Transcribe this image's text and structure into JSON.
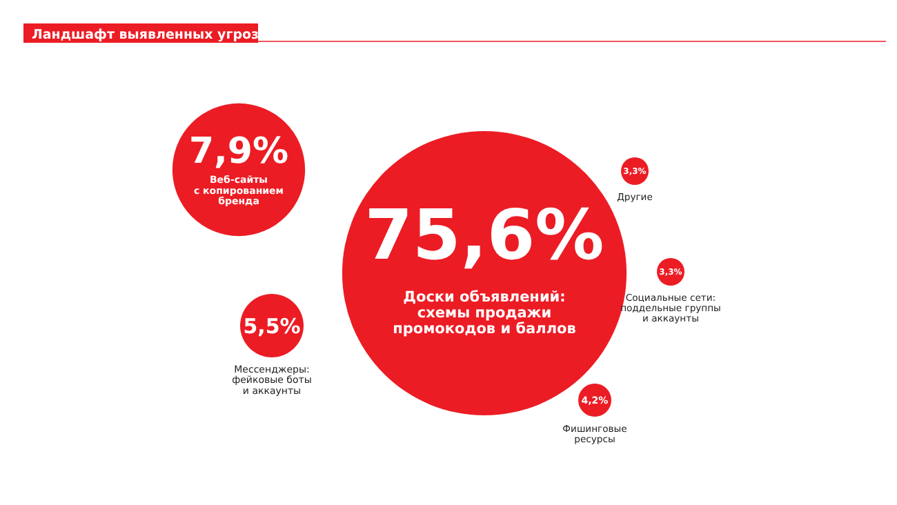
{
  "chart_data": {
    "type": "other",
    "title": "Ландшафт выявленных угроз",
    "categories": [
      "Доски объявлений:\nсхемы продажи\nпромокодов и баллов",
      "Веб-сайты\nс копированием\nбренда",
      "Мессенджеры:\nфейковые боты\nи аккаунты",
      "Другие",
      "Социальные сети:\nподдельные группы\nи аккаунты",
      "Фишинговые\nресурсы"
    ],
    "values": [
      75.6,
      7.9,
      5.5,
      3.3,
      3.3,
      4.2
    ],
    "value_labels": [
      "75,6%",
      "7,9%",
      "5,5%",
      "3,3%",
      "3,3%",
      "4,2%"
    ],
    "colors": [
      "#ec1c24",
      "#ec1c24",
      "#ec1c24",
      "#ec1c24",
      "#ec1c24",
      "#ec1c24"
    ]
  }
}
